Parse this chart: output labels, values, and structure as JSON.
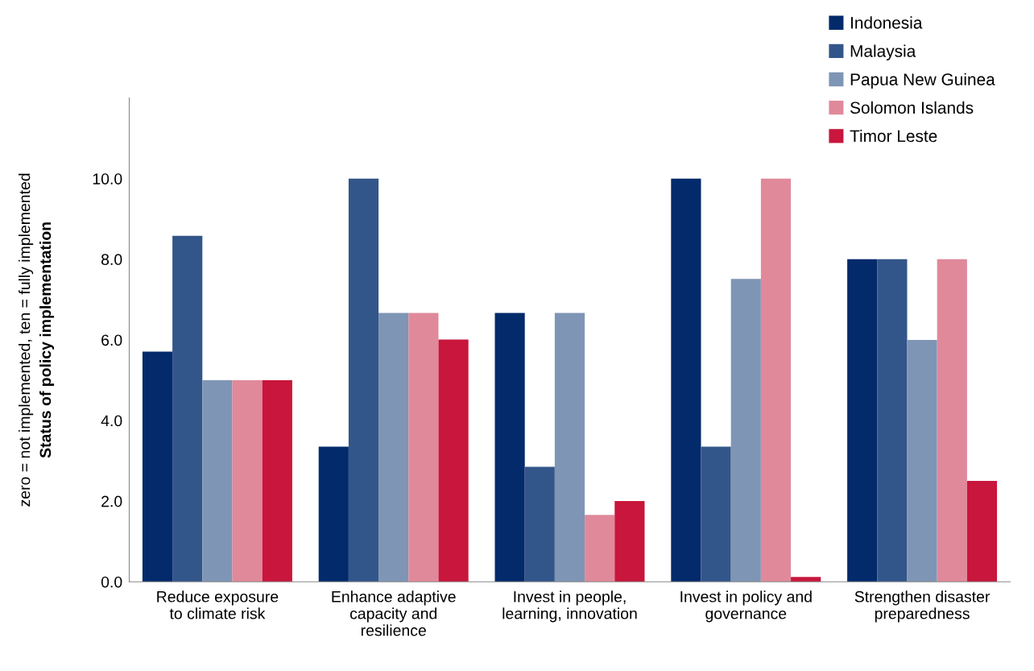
{
  "chart_data": {
    "type": "bar",
    "ylabel": "Status of policy implementation",
    "annotations": [
      "zero = not implemented, ten = fully implemented"
    ],
    "categories": [
      "Reduce exposure\nto climate risk",
      "Enhance adaptive\ncapacity and\nresilience",
      "Invest in people,\nlearning, innovation",
      "Invest in policy and\ngovernance",
      "Strengthen disaster\npreparedness"
    ],
    "series": [
      {
        "name": "Indonesia",
        "color": "#032a6b",
        "values": [
          5.71,
          3.35,
          6.67,
          10.0,
          8.0
        ]
      },
      {
        "name": "Malaysia",
        "color": "#33568a",
        "values": [
          8.58,
          10.0,
          2.85,
          3.35,
          8.0
        ]
      },
      {
        "name": "Papua New Guinea",
        "color": "#7f95b5",
        "values": [
          5.0,
          6.67,
          6.67,
          7.51,
          6.0
        ]
      },
      {
        "name": "Solomon Islands",
        "color": "#e0899b",
        "values": [
          5.0,
          6.67,
          1.66,
          10.0,
          8.0
        ]
      },
      {
        "name": "Timor Leste",
        "color": "#c8163c",
        "values": [
          5.0,
          6.01,
          2.0,
          0.12,
          2.5
        ]
      }
    ],
    "ylim": [
      0,
      12
    ],
    "yticks": [
      {
        "value": 0,
        "label": "0.0"
      },
      {
        "value": 2,
        "label": "2.0"
      },
      {
        "value": 4,
        "label": "4.0"
      },
      {
        "value": 6,
        "label": "6.0"
      },
      {
        "value": 8,
        "label": "8.0"
      },
      {
        "value": 10,
        "label": "10.0"
      }
    ],
    "grid": false,
    "legend": "top right"
  }
}
